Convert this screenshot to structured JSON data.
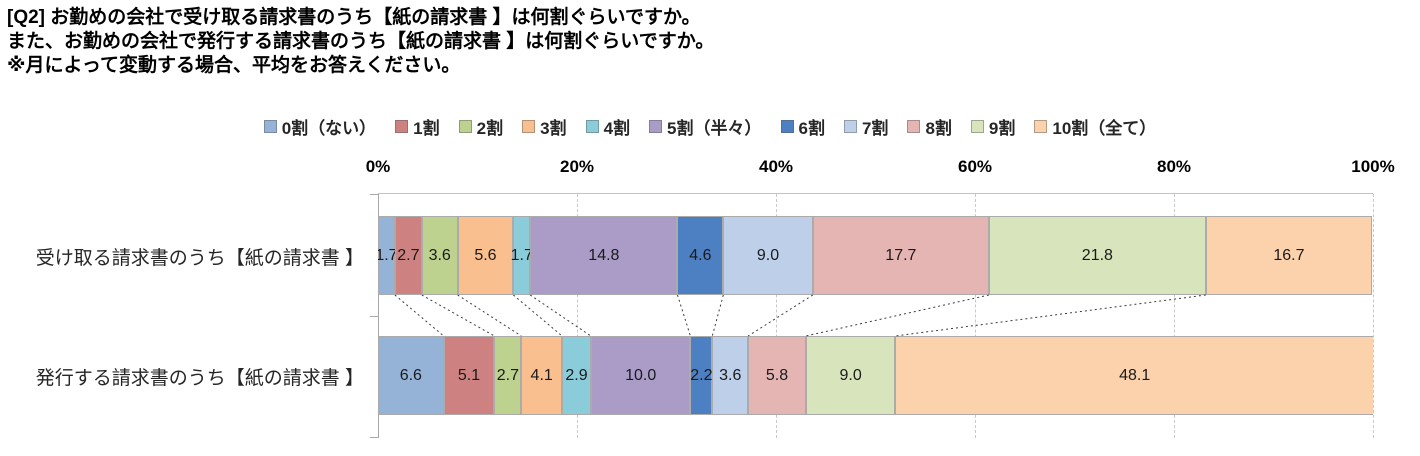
{
  "title_lines": [
    "[Q2] お勤めの会社で受け取る請求書のうち【紙の請求書 】は何割ぐらいですか。",
    "また、お勤めの会社で発行する請求書のうち【紙の請求書 】は何割ぐらいですか。",
    "※月によって変動する場合、平均をお答えください。"
  ],
  "chart_data": {
    "type": "bar",
    "variant": "100pct-stacked-horizontal",
    "unit": "%",
    "title": "",
    "xlabel": "",
    "ylabel": "",
    "categories": [
      "受け取る請求書のうち【紙の請求書 】",
      "発行する請求書のうち【紙の請求書 】"
    ],
    "series": [
      {
        "name": "0割（ない）",
        "color": "#95B3D7",
        "values": [
          1.7,
          6.6
        ]
      },
      {
        "name": "1割",
        "color": "#CD8281",
        "values": [
          2.7,
          5.1
        ]
      },
      {
        "name": "2割",
        "color": "#BCD28E",
        "values": [
          3.6,
          2.7
        ]
      },
      {
        "name": "3割",
        "color": "#FABF8F",
        "values": [
          5.6,
          4.1
        ]
      },
      {
        "name": "4割",
        "color": "#8BCCDA",
        "values": [
          1.7,
          2.9
        ]
      },
      {
        "name": "5割（半々）",
        "color": "#AA9BC7",
        "values": [
          14.8,
          10.0
        ]
      },
      {
        "name": "6割",
        "color": "#4D80C3",
        "values": [
          4.6,
          2.2
        ]
      },
      {
        "name": "7割",
        "color": "#BDCFE9",
        "values": [
          9.0,
          3.6
        ]
      },
      {
        "name": "8割",
        "color": "#E5B5B4",
        "values": [
          17.7,
          5.8
        ]
      },
      {
        "name": "9割",
        "color": "#D7E4BC",
        "values": [
          21.8,
          9.0
        ]
      },
      {
        "name": "10割（全て）",
        "color": "#FBD2AC",
        "values": [
          16.7,
          48.1
        ]
      }
    ],
    "x_axis": {
      "min": 0,
      "max": 100,
      "ticks": [
        "0%",
        "20%",
        "40%",
        "60%",
        "80%",
        "100%"
      ]
    },
    "grid": "vertical-dashed",
    "legend_position": "top",
    "series_lines": true,
    "data_label_format": "one-decimal"
  }
}
